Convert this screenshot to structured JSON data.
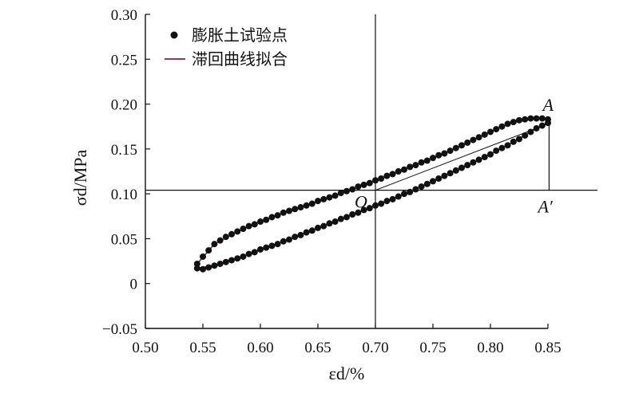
{
  "chart_data": {
    "type": "scatter",
    "xlabel": "εd/%",
    "ylabel": "σd/MPa",
    "xlim": [
      0.5,
      0.85
    ],
    "ylim": [
      -0.05,
      0.3
    ],
    "xticks": [
      0.5,
      0.55,
      0.6,
      0.65,
      0.7,
      0.75,
      0.8,
      0.85
    ],
    "xtick_labels": [
      "0.50",
      "0.55",
      "0.60",
      "0.65",
      "0.70",
      "0.75",
      "0.80",
      "0.85"
    ],
    "yticks": [
      -0.05,
      0,
      0.05,
      0.1,
      0.15,
      0.2,
      0.25,
      0.3
    ],
    "ytick_labels": [
      "−0.05",
      "0",
      "0.05",
      "0.10",
      "0.15",
      "0.20",
      "0.25",
      "0.30"
    ],
    "legend": {
      "position": "top-left"
    },
    "colors": {
      "points": "#111111",
      "fit": "#8b1a3c",
      "axes": "#111111"
    },
    "series": [
      {
        "name": "膨胀土试验点",
        "kind": "scatter",
        "upper_branch": [
          [
            0.545,
            0.022
          ],
          [
            0.55,
            0.03
          ],
          [
            0.555,
            0.037
          ],
          [
            0.56,
            0.044
          ],
          [
            0.565,
            0.048
          ],
          [
            0.57,
            0.052
          ],
          [
            0.575,
            0.055
          ],
          [
            0.58,
            0.058
          ],
          [
            0.585,
            0.061
          ],
          [
            0.59,
            0.064
          ],
          [
            0.595,
            0.066
          ],
          [
            0.6,
            0.069
          ],
          [
            0.605,
            0.071
          ],
          [
            0.61,
            0.074
          ],
          [
            0.615,
            0.076
          ],
          [
            0.62,
            0.079
          ],
          [
            0.625,
            0.081
          ],
          [
            0.63,
            0.083
          ],
          [
            0.635,
            0.085
          ],
          [
            0.64,
            0.087
          ],
          [
            0.645,
            0.089
          ],
          [
            0.65,
            0.092
          ],
          [
            0.655,
            0.094
          ],
          [
            0.66,
            0.096
          ],
          [
            0.665,
            0.098
          ],
          [
            0.67,
            0.101
          ],
          [
            0.675,
            0.103
          ],
          [
            0.68,
            0.105
          ],
          [
            0.685,
            0.108
          ],
          [
            0.69,
            0.11
          ],
          [
            0.695,
            0.112
          ],
          [
            0.7,
            0.115
          ],
          [
            0.705,
            0.117
          ],
          [
            0.71,
            0.12
          ],
          [
            0.715,
            0.122
          ],
          [
            0.72,
            0.125
          ],
          [
            0.725,
            0.127
          ],
          [
            0.73,
            0.13
          ],
          [
            0.735,
            0.132
          ],
          [
            0.74,
            0.135
          ],
          [
            0.745,
            0.137
          ],
          [
            0.75,
            0.14
          ],
          [
            0.755,
            0.143
          ],
          [
            0.76,
            0.145
          ],
          [
            0.765,
            0.148
          ],
          [
            0.77,
            0.151
          ],
          [
            0.775,
            0.154
          ],
          [
            0.78,
            0.157
          ],
          [
            0.785,
            0.16
          ],
          [
            0.79,
            0.163
          ],
          [
            0.795,
            0.166
          ],
          [
            0.8,
            0.169
          ],
          [
            0.805,
            0.172
          ],
          [
            0.81,
            0.175
          ],
          [
            0.815,
            0.178
          ],
          [
            0.82,
            0.18
          ],
          [
            0.825,
            0.182
          ],
          [
            0.83,
            0.183
          ],
          [
            0.835,
            0.184
          ],
          [
            0.84,
            0.184
          ],
          [
            0.845,
            0.184
          ],
          [
            0.85,
            0.183
          ]
        ],
        "lower_branch": [
          [
            0.545,
            0.017
          ],
          [
            0.55,
            0.016
          ],
          [
            0.555,
            0.018
          ],
          [
            0.56,
            0.02
          ],
          [
            0.565,
            0.022
          ],
          [
            0.57,
            0.024
          ],
          [
            0.575,
            0.026
          ],
          [
            0.58,
            0.028
          ],
          [
            0.585,
            0.03
          ],
          [
            0.59,
            0.033
          ],
          [
            0.595,
            0.035
          ],
          [
            0.6,
            0.038
          ],
          [
            0.605,
            0.04
          ],
          [
            0.61,
            0.042
          ],
          [
            0.615,
            0.044
          ],
          [
            0.62,
            0.047
          ],
          [
            0.625,
            0.049
          ],
          [
            0.63,
            0.052
          ],
          [
            0.635,
            0.054
          ],
          [
            0.64,
            0.057
          ],
          [
            0.645,
            0.059
          ],
          [
            0.65,
            0.062
          ],
          [
            0.655,
            0.064
          ],
          [
            0.66,
            0.067
          ],
          [
            0.665,
            0.069
          ],
          [
            0.67,
            0.072
          ],
          [
            0.675,
            0.074
          ],
          [
            0.68,
            0.077
          ],
          [
            0.685,
            0.079
          ],
          [
            0.69,
            0.082
          ],
          [
            0.695,
            0.084
          ],
          [
            0.7,
            0.087
          ],
          [
            0.705,
            0.089
          ],
          [
            0.71,
            0.092
          ],
          [
            0.715,
            0.094
          ],
          [
            0.72,
            0.097
          ],
          [
            0.725,
            0.1
          ],
          [
            0.73,
            0.102
          ],
          [
            0.735,
            0.105
          ],
          [
            0.74,
            0.108
          ],
          [
            0.745,
            0.111
          ],
          [
            0.75,
            0.114
          ],
          [
            0.755,
            0.117
          ],
          [
            0.76,
            0.12
          ],
          [
            0.765,
            0.123
          ],
          [
            0.77,
            0.126
          ],
          [
            0.775,
            0.129
          ],
          [
            0.78,
            0.132
          ],
          [
            0.785,
            0.135
          ],
          [
            0.79,
            0.138
          ],
          [
            0.795,
            0.141
          ],
          [
            0.8,
            0.144
          ],
          [
            0.805,
            0.148
          ],
          [
            0.81,
            0.151
          ],
          [
            0.815,
            0.154
          ],
          [
            0.82,
            0.158
          ],
          [
            0.825,
            0.161
          ],
          [
            0.83,
            0.165
          ],
          [
            0.835,
            0.169
          ],
          [
            0.84,
            0.173
          ],
          [
            0.845,
            0.176
          ],
          [
            0.85,
            0.179
          ]
        ]
      },
      {
        "name": "滞回曲线拟合",
        "kind": "line",
        "upper_branch": [
          [
            0.545,
            0.022
          ],
          [
            0.56,
            0.044
          ],
          [
            0.58,
            0.058
          ],
          [
            0.6,
            0.069
          ],
          [
            0.62,
            0.079
          ],
          [
            0.64,
            0.087
          ],
          [
            0.66,
            0.096
          ],
          [
            0.68,
            0.105
          ],
          [
            0.7,
            0.115
          ],
          [
            0.72,
            0.125
          ],
          [
            0.74,
            0.135
          ],
          [
            0.76,
            0.145
          ],
          [
            0.78,
            0.157
          ],
          [
            0.8,
            0.169
          ],
          [
            0.82,
            0.18
          ],
          [
            0.84,
            0.184
          ],
          [
            0.85,
            0.183
          ]
        ],
        "lower_branch": [
          [
            0.545,
            0.017
          ],
          [
            0.56,
            0.02
          ],
          [
            0.58,
            0.028
          ],
          [
            0.6,
            0.038
          ],
          [
            0.62,
            0.047
          ],
          [
            0.64,
            0.057
          ],
          [
            0.66,
            0.067
          ],
          [
            0.68,
            0.077
          ],
          [
            0.7,
            0.087
          ],
          [
            0.72,
            0.097
          ],
          [
            0.74,
            0.108
          ],
          [
            0.76,
            0.12
          ],
          [
            0.78,
            0.132
          ],
          [
            0.8,
            0.144
          ],
          [
            0.82,
            0.158
          ],
          [
            0.84,
            0.173
          ],
          [
            0.85,
            0.179
          ]
        ]
      }
    ],
    "annotations": {
      "origin": {
        "label": "O",
        "x": 0.7,
        "y": 0.104
      },
      "peak": {
        "label": "A",
        "x": 0.851,
        "y": 0.182
      },
      "projection": {
        "label": "A′",
        "x": 0.851,
        "y": 0.104
      }
    }
  }
}
